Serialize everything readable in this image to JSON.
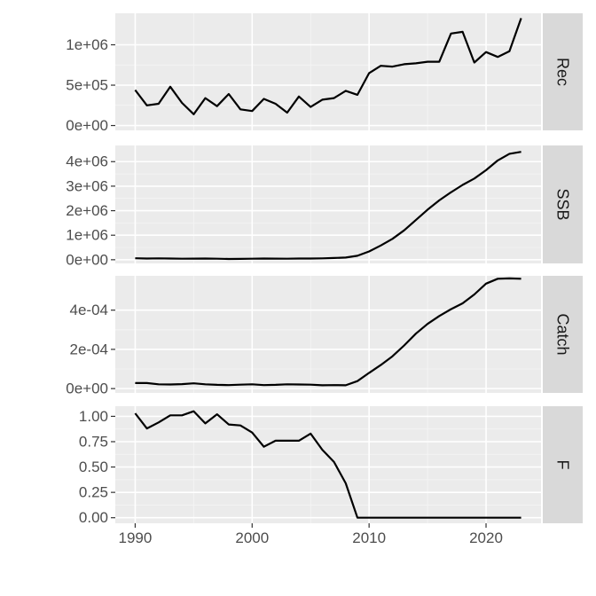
{
  "chart_data": {
    "type": "line",
    "layout": "faceted vertical panels, shared x axis",
    "x_axis": {
      "range": [
        1988.3,
        2024.7
      ],
      "ticks": [
        1990,
        2000,
        2010,
        2020
      ],
      "tick_labels": [
        "1990",
        "2000",
        "2010",
        "2020"
      ]
    },
    "x": [
      1990,
      1991,
      1992,
      1993,
      1994,
      1995,
      1996,
      1997,
      1998,
      1999,
      2000,
      2001,
      2002,
      2003,
      2004,
      2005,
      2006,
      2007,
      2008,
      2009,
      2010,
      2011,
      2012,
      2013,
      2014,
      2015,
      2016,
      2017,
      2018,
      2019,
      2020,
      2021,
      2022,
      2023
    ],
    "panels": [
      {
        "strip": "Rec",
        "ylim": [
          -60000,
          1390000
        ],
        "ticks": [
          0,
          500000,
          1000000
        ],
        "tick_labels": [
          "0e+00",
          "5e+05",
          "1e+06"
        ],
        "values": [
          440000,
          250000,
          270000,
          480000,
          280000,
          140000,
          340000,
          240000,
          390000,
          200000,
          180000,
          330000,
          270000,
          160000,
          360000,
          230000,
          320000,
          340000,
          430000,
          380000,
          650000,
          740000,
          730000,
          760000,
          770000,
          790000,
          790000,
          1140000,
          1160000,
          780000,
          910000,
          850000,
          920000,
          1330000
        ]
      },
      {
        "strip": "SSB",
        "ylim": [
          -150000,
          4660000
        ],
        "ticks": [
          0,
          1000000,
          2000000,
          3000000,
          4000000
        ],
        "tick_labels": [
          "0e+00",
          "1e+06",
          "2e+06",
          "3e+06",
          "4e+06"
        ],
        "values": [
          60000,
          50000,
          55000,
          50000,
          40000,
          45000,
          50000,
          40000,
          30000,
          35000,
          40000,
          50000,
          45000,
          40000,
          50000,
          50000,
          55000,
          70000,
          90000,
          160000,
          340000,
          580000,
          850000,
          1200000,
          1620000,
          2040000,
          2420000,
          2750000,
          3050000,
          3310000,
          3650000,
          4050000,
          4320000,
          4400000
        ]
      },
      {
        "strip": "Catch",
        "ylim": [
          -2.2e-05,
          0.000575
        ],
        "ticks": [
          0,
          0.0002,
          0.0004
        ],
        "tick_labels": [
          "0e+00",
          "2e-04",
          "4e-04"
        ],
        "values": [
          2.8e-05,
          2.8e-05,
          2.2e-05,
          2.1e-05,
          2.3e-05,
          2.7e-05,
          2.2e-05,
          1.9e-05,
          1.8e-05,
          2e-05,
          2.2e-05,
          1.8e-05,
          1.9e-05,
          2.2e-05,
          2.1e-05,
          2e-05,
          1.7e-05,
          1.8e-05,
          1.7e-05,
          3.8e-05,
          8e-05,
          0.00012,
          0.000165,
          0.00022,
          0.00028,
          0.00033,
          0.00037,
          0.000405,
          0.000435,
          0.00048,
          0.000535,
          0.00056,
          0.000562,
          0.00056
        ]
      },
      {
        "strip": "F",
        "ylim": [
          -0.055,
          1.1
        ],
        "ticks": [
          0,
          0.25,
          0.5,
          0.75,
          1.0
        ],
        "tick_labels": [
          "0.00",
          "0.25",
          "0.50",
          "0.75",
          "1.00"
        ],
        "values": [
          1.03,
          0.88,
          0.94,
          1.01,
          1.01,
          1.05,
          0.93,
          1.02,
          0.92,
          0.91,
          0.84,
          0.7,
          0.76,
          0.76,
          0.76,
          0.83,
          0.67,
          0.55,
          0.34,
          0.0,
          0.0,
          0.0,
          0.0,
          0.0,
          0.0,
          0.0,
          0.0,
          0.0,
          0.0,
          0.0,
          0.0,
          0.0,
          0.0,
          0.0
        ]
      }
    ],
    "colors": {
      "panel_background": "#ebebeb",
      "strip_background": "#d9d9d9",
      "grid_major": "#ffffff",
      "grid_minor": "#f5f5f5",
      "line": "#000000",
      "text": "#4d4d4d"
    }
  }
}
